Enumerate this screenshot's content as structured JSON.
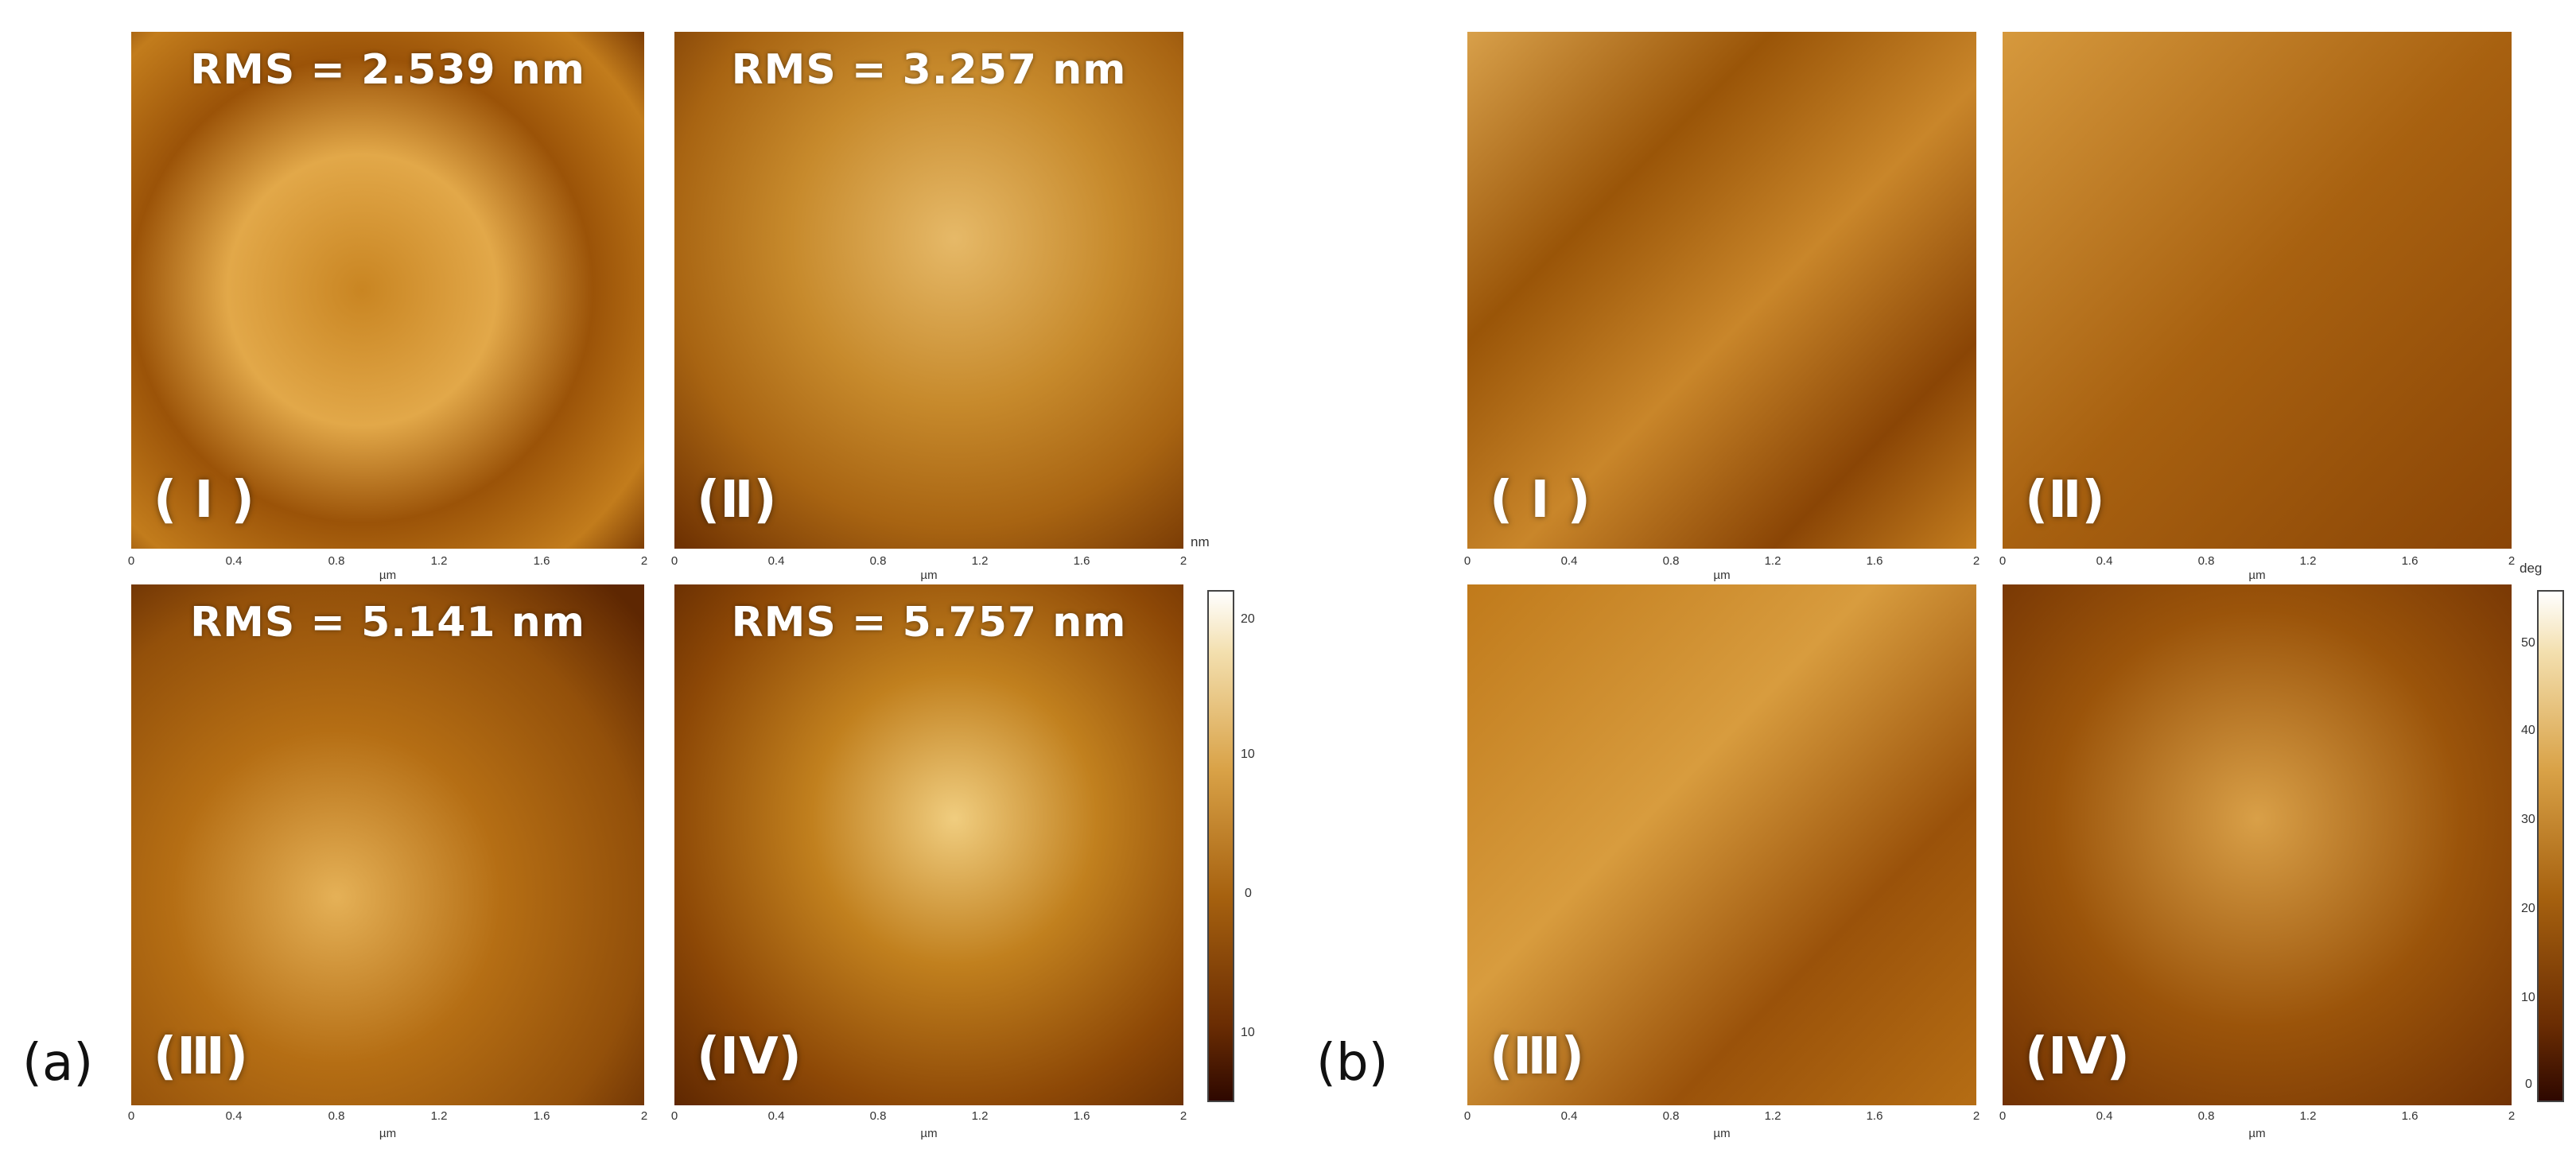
{
  "figure": {
    "panel_a_label": "(a)",
    "panel_b_label": "(b)"
  },
  "height_images": [
    {
      "roman": "( I )",
      "rms": "RMS = 2.539 nm",
      "tone": 1
    },
    {
      "roman": "(Ⅱ)",
      "rms": "RMS = 3.257 nm",
      "tone": 2
    },
    {
      "roman": "(Ⅲ)",
      "rms": "RMS = 5.141 nm",
      "tone": 3
    },
    {
      "roman": "(IV)",
      "rms": "RMS = 5.757 nm",
      "tone": 4
    }
  ],
  "phase_images": [
    {
      "roman": "( I )",
      "tone": 5
    },
    {
      "roman": "(Ⅱ)",
      "tone": 6
    },
    {
      "roman": "(Ⅲ)",
      "tone": 7
    },
    {
      "roman": "(IV)",
      "tone": 8
    }
  ],
  "axis": {
    "ticks": [
      "0",
      "0.4",
      "0.8",
      "1.2",
      "1.6",
      "2"
    ],
    "unit": "µm"
  },
  "colorbar_a": {
    "unit": "nm",
    "ticks": [
      "20",
      "10",
      "0",
      "10"
    ]
  },
  "colorbar_b": {
    "unit": "deg",
    "ticks": [
      "50",
      "40",
      "30",
      "20",
      "10",
      "0"
    ]
  },
  "colors": {
    "dark": "#3a0d00",
    "mid": "#a85a06",
    "light": "#f3d27a",
    "highlight": "#fff6dc"
  }
}
